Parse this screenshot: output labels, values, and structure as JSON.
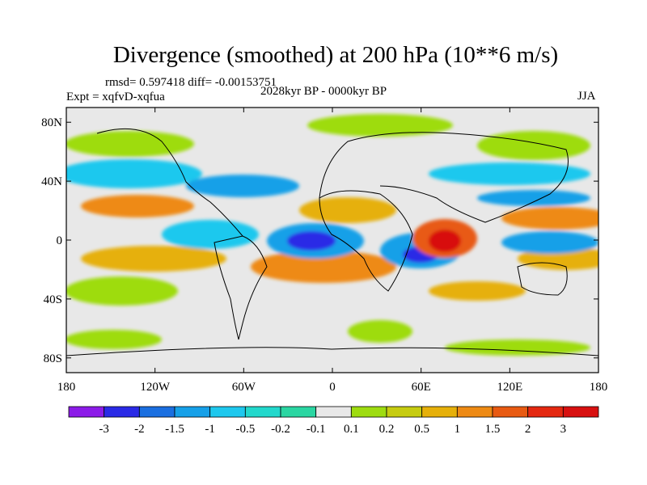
{
  "title": "Divergence (smoothed) at 200 hPa (10**6 m/s)",
  "stats": "rmsd= 0.597418 diff= -0.00153751",
  "experiment": "Expt = xqfvD-xqfua",
  "period": "2028kyr BP - 0000kyr BP",
  "season": "JJA",
  "lat_ticks": [
    "80N",
    "40N",
    "0",
    "40S",
    "80S"
  ],
  "lon_ticks": [
    "180",
    "120W",
    "60W",
    "0",
    "60E",
    "120E",
    "180"
  ],
  "colorbar": {
    "labels": [
      "-3",
      "-2",
      "-1.5",
      "-1",
      "-0.5",
      "-0.2",
      "-0.1",
      "0.1",
      "0.2",
      "0.5",
      "1",
      "1.5",
      "2",
      "3"
    ],
    "colors": [
      "#8c1be8",
      "#2a2ae6",
      "#1a6fe0",
      "#16a0e8",
      "#1ec8ee",
      "#22d8cc",
      "#2ad6a2",
      "#e8e8e8",
      "#9edc10",
      "#c6cc10",
      "#e6b00a",
      "#ee8a14",
      "#e85a12",
      "#e42810",
      "#d81010"
    ]
  }
}
